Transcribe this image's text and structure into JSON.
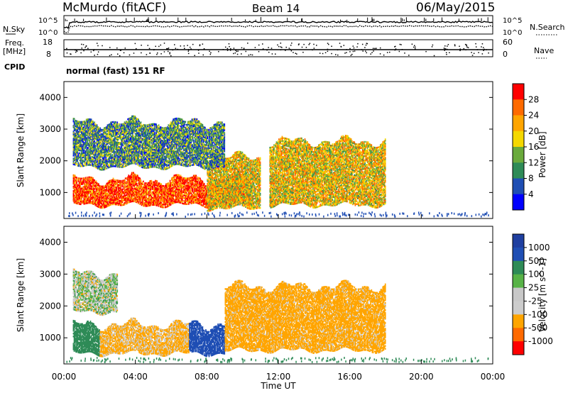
{
  "header": {
    "station": "McMurdo (fitACF)",
    "beam": "Beam 14",
    "date": "06/May/2015"
  },
  "top_panel": {
    "left_label": "N.Sky",
    "right_label": "N.Search",
    "left_ticks": [
      "10^5",
      "10^0"
    ],
    "right_ticks": [
      "10^5",
      "10^0"
    ]
  },
  "freq_panel": {
    "left_label_1": "Freq.",
    "left_label_2": "[MHz]",
    "right_label": "Nave",
    "left_ticks": [
      "18",
      "8"
    ],
    "right_ticks": [
      "60",
      "0"
    ]
  },
  "cpid": {
    "label": "CPID",
    "value": "normal (fast) 151 RF"
  },
  "colors": {
    "power_scale": [
      "#0000ff",
      "#1f4eb4",
      "#2e8b57",
      "#6aaa3c",
      "#f5d800",
      "#ffa500",
      "#ff6a00",
      "#ff0000"
    ],
    "velocity_scale": [
      "#ff0000",
      "#ff6a00",
      "#ffa500",
      "#cccccc",
      "#c8c8c8",
      "#58b347",
      "#2e8b57",
      "#1f4eb4",
      "#1f3fa0"
    ]
  },
  "chart_data": [
    {
      "type": "heatmap",
      "title": "",
      "ylabel": "Slant Range [km]",
      "xlabel": "",
      "ylim": [
        180,
        4500
      ],
      "yticks": [
        "1000",
        "2000",
        "3000",
        "4000"
      ],
      "xlim": [
        0,
        24
      ],
      "colorbar": {
        "label": "Power [dB]",
        "ticks": [
          "28",
          "24",
          "20",
          "16",
          "12",
          "8",
          "4"
        ],
        "range": [
          0,
          30
        ]
      },
      "echo_regions": [
        {
          "t_start": 0.5,
          "t_end": 10.5,
          "r_low": 600,
          "r_high": 1400,
          "power": 26
        },
        {
          "t_start": 8.0,
          "t_end": 11.0,
          "r_low": 500,
          "r_high": 2100,
          "power": 18
        },
        {
          "t_start": 11.5,
          "t_end": 18.0,
          "r_low": 600,
          "r_high": 2600,
          "power": 18
        },
        {
          "t_start": 0.5,
          "t_end": 9.0,
          "r_low": 1800,
          "r_high": 3200,
          "power": 10
        }
      ]
    },
    {
      "type": "heatmap",
      "title": "",
      "ylabel": "Slant Range [km]",
      "xlabel": "Time UT",
      "ylim": [
        180,
        4500
      ],
      "yticks": [
        "1000",
        "2000",
        "3000",
        "4000"
      ],
      "xlim": [
        0,
        24
      ],
      "xticks": [
        "00:00",
        "04:00",
        "08:00",
        "12:00",
        "16:00",
        "20:00",
        "00:00"
      ],
      "colorbar": {
        "label": "Velocity [m s^-1]",
        "ticks": [
          "1000",
          "500",
          "100",
          "25",
          "-25",
          "-100",
          "-500",
          "-1000"
        ]
      },
      "echo_regions": [
        {
          "t_start": 0.5,
          "t_end": 2.0,
          "r_low": 500,
          "r_high": 1400,
          "velocity": 300
        },
        {
          "t_start": 2.0,
          "t_end": 7.0,
          "r_low": 500,
          "r_high": 1400,
          "velocity": -150
        },
        {
          "t_start": 7.0,
          "t_end": 9.0,
          "r_low": 500,
          "r_high": 1400,
          "velocity": 800
        },
        {
          "t_start": 9.0,
          "t_end": 18.0,
          "r_low": 600,
          "r_high": 2600,
          "velocity": -200
        },
        {
          "t_start": 0.5,
          "t_end": 3.0,
          "r_low": 1800,
          "r_high": 3000,
          "velocity": 0
        }
      ]
    }
  ]
}
